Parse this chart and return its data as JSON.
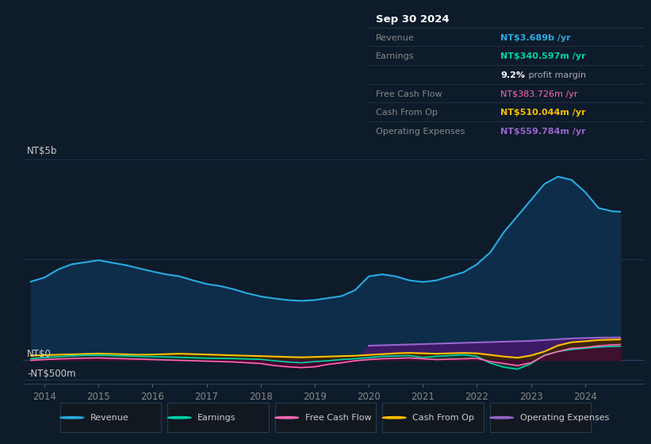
{
  "background_color": "#0d1b2a",
  "chart_bg_color": "#0d1b2a",
  "years": [
    2013.75,
    2014.0,
    2014.25,
    2014.5,
    2014.75,
    2015.0,
    2015.25,
    2015.5,
    2015.75,
    2016.0,
    2016.25,
    2016.5,
    2016.75,
    2017.0,
    2017.25,
    2017.5,
    2017.75,
    2018.0,
    2018.25,
    2018.5,
    2018.75,
    2019.0,
    2019.25,
    2019.5,
    2019.75,
    2020.0,
    2020.25,
    2020.5,
    2020.75,
    2021.0,
    2021.25,
    2021.5,
    2021.75,
    2022.0,
    2022.25,
    2022.5,
    2022.75,
    2023.0,
    2023.25,
    2023.5,
    2023.75,
    2024.0,
    2024.25,
    2024.5,
    2024.65
  ],
  "revenue": [
    1950,
    2050,
    2250,
    2380,
    2430,
    2480,
    2420,
    2360,
    2280,
    2200,
    2130,
    2080,
    1980,
    1890,
    1840,
    1760,
    1660,
    1580,
    1530,
    1490,
    1470,
    1490,
    1540,
    1590,
    1740,
    2080,
    2130,
    2080,
    1980,
    1940,
    1980,
    2080,
    2180,
    2380,
    2680,
    3180,
    3580,
    3980,
    4380,
    4560,
    4480,
    4180,
    3780,
    3700,
    3689
  ],
  "earnings": [
    30,
    60,
    80,
    100,
    115,
    120,
    110,
    100,
    90,
    85,
    75,
    65,
    55,
    45,
    40,
    35,
    25,
    15,
    -20,
    -50,
    -70,
    -40,
    -20,
    10,
    30,
    60,
    90,
    100,
    110,
    60,
    90,
    110,
    130,
    90,
    -80,
    -180,
    -230,
    -90,
    120,
    210,
    260,
    290,
    320,
    335,
    341
  ],
  "fcf": [
    -10,
    10,
    25,
    35,
    45,
    50,
    40,
    30,
    20,
    10,
    0,
    -10,
    -20,
    -30,
    -40,
    -50,
    -70,
    -90,
    -140,
    -170,
    -190,
    -170,
    -110,
    -70,
    -20,
    10,
    30,
    40,
    50,
    30,
    10,
    20,
    30,
    40,
    -40,
    -90,
    -140,
    -70,
    110,
    210,
    290,
    310,
    350,
    375,
    384
  ],
  "cashfromop": [
    110,
    120,
    130,
    140,
    150,
    160,
    150,
    140,
    130,
    135,
    145,
    155,
    145,
    135,
    125,
    115,
    105,
    95,
    85,
    75,
    65,
    75,
    85,
    95,
    105,
    125,
    145,
    165,
    175,
    165,
    155,
    165,
    175,
    165,
    125,
    85,
    55,
    110,
    210,
    360,
    440,
    465,
    495,
    505,
    510
  ],
  "opex": [
    0,
    0,
    0,
    0,
    0,
    0,
    0,
    0,
    0,
    0,
    0,
    0,
    0,
    0,
    0,
    0,
    0,
    0,
    0,
    0,
    0,
    0,
    0,
    0,
    0,
    355,
    365,
    375,
    385,
    395,
    405,
    415,
    425,
    435,
    445,
    455,
    465,
    475,
    495,
    515,
    535,
    545,
    555,
    558,
    560
  ],
  "revenue_color": "#29abe2",
  "revenue_fill": "#0d2d4a",
  "earnings_color": "#00d4aa",
  "earnings_fill": "#003d30",
  "fcf_color": "#ff69b4",
  "fcf_fill": "#550030",
  "cashfromop_color": "#ffc000",
  "cashfromop_fill": "#3d2800",
  "opex_color": "#9966cc",
  "opex_fill": "#3d1a66",
  "ylim": [
    -600,
    5200
  ],
  "xlim": [
    2013.6,
    2025.1
  ],
  "ytick_values": [
    5000,
    2500,
    0,
    -500
  ],
  "xtick_years": [
    2014,
    2015,
    2016,
    2017,
    2018,
    2019,
    2020,
    2021,
    2022,
    2023,
    2024
  ],
  "legend_items": [
    {
      "label": "Revenue",
      "color": "#29abe2"
    },
    {
      "label": "Earnings",
      "color": "#00d4aa"
    },
    {
      "label": "Free Cash Flow",
      "color": "#ff69b4"
    },
    {
      "label": "Cash From Op",
      "color": "#ffc000"
    },
    {
      "label": "Operating Expenses",
      "color": "#9966cc"
    }
  ],
  "tooltip_title": "Sep 30 2024",
  "tooltip_rows": [
    {
      "label": "Revenue",
      "value": "NT$3.689b /yr",
      "vcolor": "#29abe2",
      "bold": true
    },
    {
      "label": "Earnings",
      "value": "NT$340.597m /yr",
      "vcolor": "#00d4aa",
      "bold": true
    },
    {
      "label": "",
      "value": "9.2% profit margin",
      "vcolor": "#aaaaaa",
      "bold": false,
      "bold_prefix": "9.2%"
    },
    {
      "label": "Free Cash Flow",
      "value": "NT$383.726m /yr",
      "vcolor": "#ff69b4",
      "bold": false
    },
    {
      "label": "Cash From Op",
      "value": "NT$510.044m /yr",
      "vcolor": "#ffc000",
      "bold": true
    },
    {
      "label": "Operating Expenses",
      "value": "NT$559.784m /yr",
      "vcolor": "#9966cc",
      "bold": true
    }
  ]
}
